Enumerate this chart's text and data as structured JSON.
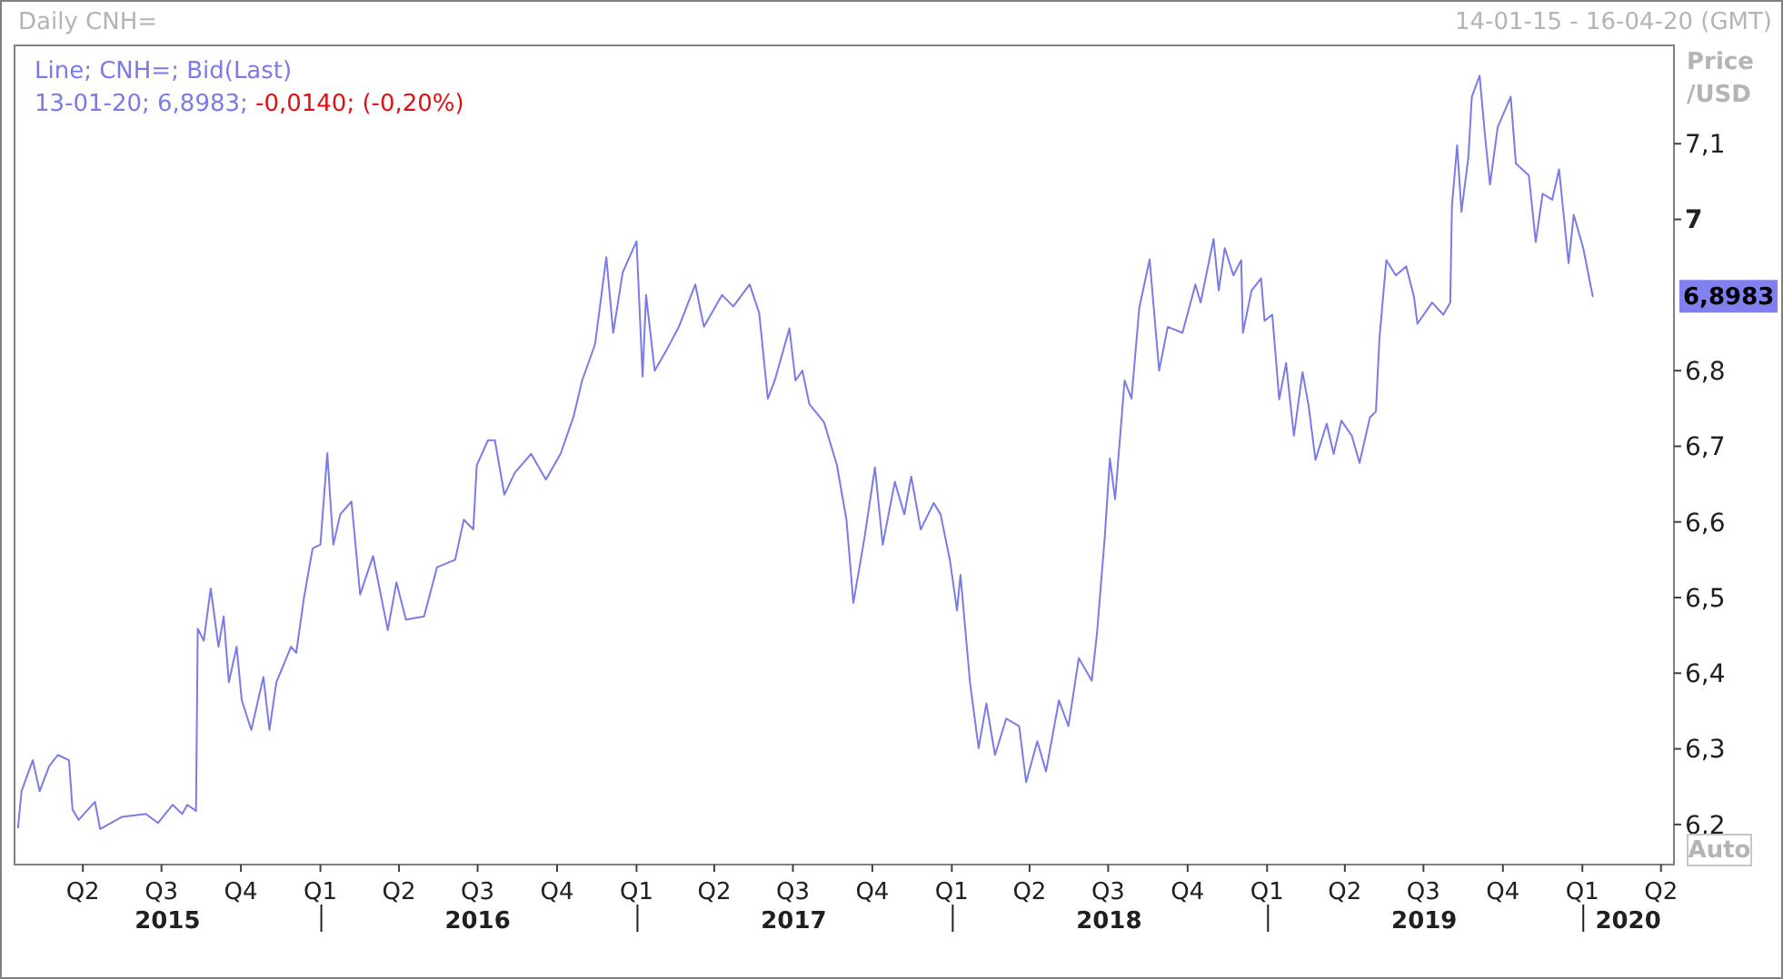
{
  "chart_data": {
    "type": "line",
    "title": "Daily CNH=",
    "subtitle": "14-01-15 - 16-04-20 (GMT)",
    "ylabel": "Price /USD",
    "annotations": [
      "13-01-20; 6,8983; -0,0140; (-0,20%)",
      "6,8983",
      "Auto"
    ],
    "legend": "top left",
    "xlim": [
      "2015-01-14",
      "2020-04-16"
    ],
    "xticks": [
      {
        "value": "2015-04-01",
        "label": "Q2"
      },
      {
        "value": "2015-07-01",
        "label": "Q3"
      },
      {
        "value": "2015-10-01",
        "label": "Q4"
      },
      {
        "value": "2016-01-01",
        "label": "Q1"
      },
      {
        "value": "2016-04-01",
        "label": "Q2"
      },
      {
        "value": "2016-07-01",
        "label": "Q3"
      },
      {
        "value": "2016-10-01",
        "label": "Q4"
      },
      {
        "value": "2017-01-01",
        "label": "Q1"
      },
      {
        "value": "2017-04-01",
        "label": "Q2"
      },
      {
        "value": "2017-07-01",
        "label": "Q3"
      },
      {
        "value": "2017-10-01",
        "label": "Q4"
      },
      {
        "value": "2018-01-01",
        "label": "Q1"
      },
      {
        "value": "2018-04-01",
        "label": "Q2"
      },
      {
        "value": "2018-07-01",
        "label": "Q3"
      },
      {
        "value": "2018-10-01",
        "label": "Q4"
      },
      {
        "value": "2019-01-01",
        "label": "Q1"
      },
      {
        "value": "2019-04-01",
        "label": "Q2"
      },
      {
        "value": "2019-07-01",
        "label": "Q3"
      },
      {
        "value": "2019-10-01",
        "label": "Q4"
      },
      {
        "value": "2020-01-01",
        "label": "Q1"
      },
      {
        "value": "2020-04-01",
        "label": "Q2"
      }
    ],
    "x2lim": [
      "2015-01-14",
      "2020-04-16"
    ],
    "x2ticks": [
      {
        "value": "2015-07-08",
        "label": "2015"
      },
      {
        "value": "2016-01-01",
        "label": null
      },
      {
        "value": "2016-07-01",
        "label": "2016"
      },
      {
        "value": "2017-01-01",
        "label": null
      },
      {
        "value": "2017-07-02",
        "label": "2017"
      },
      {
        "value": "2018-01-01",
        "label": null
      },
      {
        "value": "2018-07-02",
        "label": "2018"
      },
      {
        "value": "2019-01-01",
        "label": null
      },
      {
        "value": "2019-07-02",
        "label": "2019"
      },
      {
        "value": "2020-01-01",
        "label": null
      },
      {
        "value": "2020-02-23",
        "label": "2020"
      }
    ],
    "ylim": [
      6.147,
      7.23
    ],
    "yticks": [
      {
        "value": 6.2,
        "label": "6,2"
      },
      {
        "value": 6.3,
        "label": "6,3"
      },
      {
        "value": 6.4,
        "label": "6,4"
      },
      {
        "value": 6.5,
        "label": "6,5"
      },
      {
        "value": 6.6,
        "label": "6,6"
      },
      {
        "value": 6.7,
        "label": "6,7"
      },
      {
        "value": 6.8,
        "label": "6,8"
      },
      7,
      {
        "value": 7.1,
        "label": "7,1"
      }
    ],
    "grid": false,
    "series": [
      {
        "name": "Line; CNH=; Bid(Last)",
        "color": "#7b7be6",
        "x": [
          "2015-01-16",
          "2015-01-20",
          "2015-02-02",
          "2015-02-10",
          "2015-02-21",
          "2015-03-03",
          "2015-03-16",
          "2015-03-20",
          "2015-03-27",
          "2015-04-15",
          "2015-04-21",
          "2015-05-16",
          "2015-06-13",
          "2015-06-27",
          "2015-07-14",
          "2015-07-25",
          "2015-07-31",
          "2015-08-10",
          "2015-08-12",
          "2015-08-19",
          "2015-08-27",
          "2015-09-05",
          "2015-09-11",
          "2015-09-17",
          "2015-09-26",
          "2015-10-02",
          "2015-10-13",
          "2015-10-27",
          "2015-11-03",
          "2015-11-11",
          "2015-11-28",
          "2015-12-04",
          "2015-12-13",
          "2015-12-23",
          "2016-01-01",
          "2016-01-09",
          "2016-01-13",
          "2016-01-16",
          "2016-01-24",
          "2016-02-06",
          "2016-02-16",
          "2016-03-02",
          "2016-03-19",
          "2016-03-29",
          "2016-04-09",
          "2016-04-30",
          "2016-05-15",
          "2016-06-05",
          "2016-06-15",
          "2016-06-26",
          "2016-06-30",
          "2016-07-13",
          "2016-07-21",
          "2016-08-01",
          "2016-08-13",
          "2016-09-01",
          "2016-09-18",
          "2016-10-05",
          "2016-10-20",
          "2016-10-30",
          "2016-11-14",
          "2016-11-27",
          "2016-12-05",
          "2016-12-16",
          "2017-01-01",
          "2017-01-08",
          "2017-01-12",
          "2017-01-22",
          "2017-02-06",
          "2017-02-19",
          "2017-03-10",
          "2017-03-20",
          "2017-04-10",
          "2017-04-23",
          "2017-05-12",
          "2017-05-23",
          "2017-06-02",
          "2017-06-10",
          "2017-06-27",
          "2017-07-04",
          "2017-07-12",
          "2017-07-20",
          "2017-08-06",
          "2017-08-21",
          "2017-09-01",
          "2017-09-09",
          "2017-09-22",
          "2017-10-04",
          "2017-10-13",
          "2017-10-27",
          "2017-11-07",
          "2017-11-15",
          "2017-11-26",
          "2017-12-11",
          "2017-12-19",
          "2017-12-30",
          "2018-01-07",
          "2018-01-11",
          "2018-01-22",
          "2018-02-01",
          "2018-02-10",
          "2018-02-20",
          "2018-03-05",
          "2018-03-20",
          "2018-03-28",
          "2018-04-10",
          "2018-04-20",
          "2018-05-05",
          "2018-05-16",
          "2018-05-28",
          "2018-06-12",
          "2018-06-18",
          "2018-06-27",
          "2018-07-03",
          "2018-07-09",
          "2018-07-20",
          "2018-07-28",
          "2018-08-06",
          "2018-08-18",
          "2018-08-29",
          "2018-09-08",
          "2018-09-25",
          "2018-10-10",
          "2018-10-16",
          "2018-10-31",
          "2018-11-06",
          "2018-11-13",
          "2018-11-23",
          "2018-12-02",
          "2018-12-04",
          "2018-12-14",
          "2018-12-25",
          "2018-12-29",
          "2019-01-07",
          "2019-01-15",
          "2019-01-23",
          "2019-02-01",
          "2019-02-11",
          "2019-02-18",
          "2019-02-26",
          "2019-03-11",
          "2019-03-19",
          "2019-03-28",
          "2019-04-09",
          "2019-04-18",
          "2019-04-30",
          "2019-05-07",
          "2019-05-11",
          "2019-05-19",
          "2019-05-30",
          "2019-06-11",
          "2019-06-20",
          "2019-06-24",
          "2019-07-11",
          "2019-07-24",
          "2019-08-01",
          "2019-08-03",
          "2019-08-09",
          "2019-08-14",
          "2019-08-22",
          "2019-08-26",
          "2019-09-04",
          "2019-09-10",
          "2019-09-16",
          "2019-09-25",
          "2019-10-10",
          "2019-10-16",
          "2019-10-31",
          "2019-11-08",
          "2019-11-16",
          "2019-11-27",
          "2019-12-05",
          "2019-12-16",
          "2019-12-22",
          "2020-01-02",
          "2020-01-13"
        ],
        "values": [
          6.196,
          6.244,
          6.285,
          6.244,
          6.277,
          6.292,
          6.285,
          6.22,
          6.206,
          6.23,
          6.194,
          6.21,
          6.214,
          6.202,
          6.226,
          6.214,
          6.226,
          6.218,
          6.459,
          6.443,
          6.512,
          6.435,
          6.475,
          6.388,
          6.435,
          6.364,
          6.325,
          6.395,
          6.325,
          6.388,
          6.435,
          6.427,
          6.5,
          6.565,
          6.57,
          6.691,
          6.62,
          6.57,
          6.61,
          6.627,
          6.504,
          6.555,
          6.457,
          6.52,
          6.471,
          6.475,
          6.54,
          6.55,
          6.603,
          6.59,
          6.675,
          6.708,
          6.708,
          6.636,
          6.665,
          6.69,
          6.656,
          6.69,
          6.739,
          6.787,
          6.835,
          6.95,
          6.85,
          6.93,
          6.971,
          6.792,
          6.9,
          6.8,
          6.83,
          6.858,
          6.914,
          6.858,
          6.9,
          6.885,
          6.914,
          6.876,
          6.763,
          6.787,
          6.856,
          6.787,
          6.8,
          6.756,
          6.732,
          6.675,
          6.603,
          6.493,
          6.58,
          6.672,
          6.57,
          6.653,
          6.61,
          6.66,
          6.59,
          6.625,
          6.61,
          6.548,
          6.483,
          6.53,
          6.388,
          6.301,
          6.36,
          6.292,
          6.34,
          6.33,
          6.256,
          6.31,
          6.27,
          6.364,
          6.33,
          6.42,
          6.39,
          6.452,
          6.579,
          6.684,
          6.63,
          6.787,
          6.763,
          6.883,
          6.947,
          6.8,
          6.858,
          6.85,
          6.914,
          6.89,
          6.974,
          6.906,
          6.962,
          6.926,
          6.946,
          6.85,
          6.906,
          6.922,
          6.866,
          6.874,
          6.762,
          6.81,
          6.714,
          6.798,
          6.754,
          6.682,
          6.73,
          6.69,
          6.734,
          6.714,
          6.678,
          6.738,
          6.746,
          6.842,
          6.946,
          6.926,
          6.938,
          6.898,
          6.862,
          6.89,
          6.874,
          6.89,
          7.018,
          7.098,
          7.01,
          7.082,
          7.162,
          7.19,
          7.114,
          7.046,
          7.122,
          7.162,
          7.074,
          7.058,
          6.97,
          7.034,
          7.026,
          7.066,
          6.942,
          7.006,
          6.962,
          6.8983
        ]
      }
    ]
  }
}
